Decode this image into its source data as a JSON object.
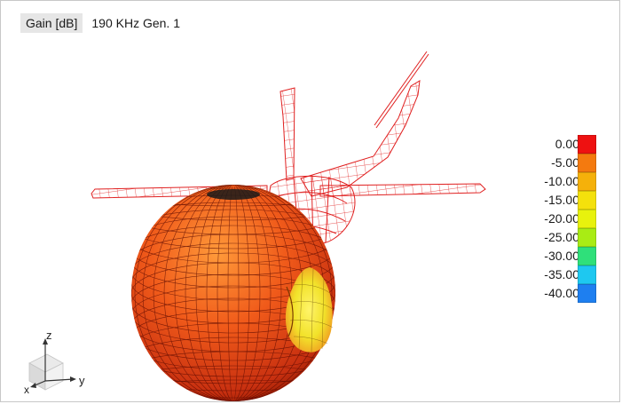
{
  "header": {
    "quantity_label": "Gain [dB]",
    "title": "190 KHz Gen. 1"
  },
  "legend": {
    "entries": [
      {
        "label": "0.00",
        "color": "#ee1111"
      },
      {
        "label": "-5.00",
        "color": "#f47a0f"
      },
      {
        "label": "-10.00",
        "color": "#f5b10a"
      },
      {
        "label": "-15.00",
        "color": "#f4e10c"
      },
      {
        "label": "-20.00",
        "color": "#e8f20d"
      },
      {
        "label": "-25.00",
        "color": "#a9ec14"
      },
      {
        "label": "-30.00",
        "color": "#2fe07a"
      },
      {
        "label": "-35.00",
        "color": "#1ec8f0"
      },
      {
        "label": "-40.00",
        "color": "#1e7ff0"
      }
    ]
  },
  "axes": {
    "x": "x",
    "y": "y",
    "z": "z"
  },
  "colors": {
    "wireframe": "#e02020",
    "pattern_dark": "#a81400",
    "pattern_mid": "#f05a1a",
    "pattern_null": "#f2ea2a"
  }
}
